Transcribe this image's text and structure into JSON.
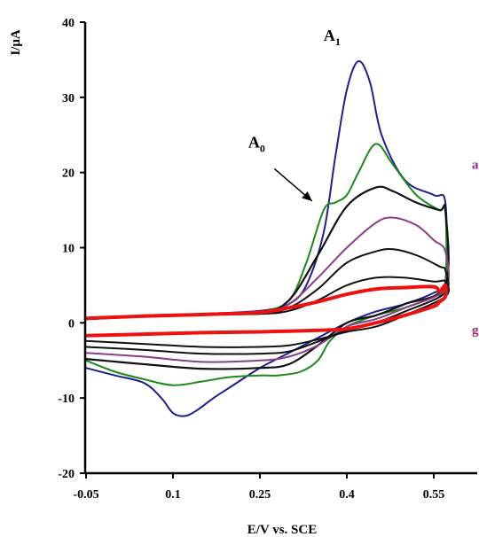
{
  "chart_data": {
    "type": "line",
    "title": "",
    "xlabel": "E/V vs. SCE",
    "ylabel": "I/μA",
    "xlim": [
      -0.05,
      0.62
    ],
    "ylim": [
      -20,
      40
    ],
    "xticks": [
      -0.05,
      0.1,
      0.25,
      0.4,
      0.55
    ],
    "xtick_labels": [
      "-0.05",
      "0.1",
      "0.25",
      "0.4",
      "0.55"
    ],
    "yticks": [
      -20,
      -10,
      0,
      10,
      20,
      30,
      40
    ],
    "ytick_labels": [
      "-20",
      "-10",
      "0",
      "10",
      "20",
      "30",
      "40"
    ],
    "grid": false,
    "legend": "none",
    "annotations": [
      {
        "main": "A",
        "sub": "1",
        "x": 0.36,
        "y": 37.5
      },
      {
        "main": "A",
        "sub": "0",
        "x": 0.23,
        "y": 23.3
      }
    ],
    "annotation_arrow": {
      "from": [
        0.275,
        20.5
      ],
      "to": [
        0.34,
        16.2
      ]
    },
    "edge_labels": [
      {
        "text": "a",
        "color": "#8b2a7e",
        "x": 0.66,
        "y": 20.5
      },
      {
        "text": "g",
        "color": "#8b2a7e",
        "x": 0.66,
        "y": -1.5
      }
    ],
    "series": [
      {
        "color": "#1f1f8f",
        "width": 2,
        "x": [
          -0.05,
          0.05,
          0.15,
          0.25,
          0.3,
          0.33,
          0.36,
          0.38,
          0.4,
          0.42,
          0.44,
          0.46,
          0.5,
          0.55,
          0.57,
          0.57,
          0.55,
          0.5,
          0.45,
          0.4,
          0.35,
          0.3,
          0.25,
          0.2,
          0.17,
          0.14,
          0.12,
          0.1,
          0.08,
          0.05,
          0.0,
          -0.05
        ],
        "y": [
          0.5,
          1.0,
          1.2,
          1.6,
          2.5,
          5.0,
          12.0,
          22.0,
          31.0,
          34.8,
          32.0,
          25.0,
          19.0,
          17.0,
          16.0,
          5.5,
          4.0,
          2.5,
          1.5,
          0.0,
          -2.0,
          -4.0,
          -6.0,
          -8.5,
          -10.0,
          -11.7,
          -12.4,
          -12.0,
          -10.0,
          -8.0,
          -7.0,
          -6.0
        ]
      },
      {
        "color": "#1a8a1a",
        "width": 2,
        "x": [
          -0.05,
          0.05,
          0.15,
          0.25,
          0.3,
          0.33,
          0.36,
          0.38,
          0.4,
          0.42,
          0.45,
          0.48,
          0.52,
          0.56,
          0.57,
          0.57,
          0.55,
          0.5,
          0.45,
          0.4,
          0.37,
          0.35,
          0.32,
          0.28,
          0.25,
          0.2,
          0.15,
          0.1,
          0.05,
          0.0,
          -0.05
        ],
        "y": [
          0.5,
          0.9,
          1.1,
          1.5,
          3.0,
          8.0,
          15.0,
          16.0,
          17.0,
          20.0,
          23.8,
          21.0,
          17.0,
          15.0,
          15.0,
          5.0,
          3.5,
          2.0,
          1.0,
          -0.5,
          -2.5,
          -5.0,
          -6.5,
          -7.0,
          -7.0,
          -7.2,
          -7.8,
          -8.3,
          -7.5,
          -6.5,
          -5.0
        ]
      },
      {
        "color": "#111111",
        "width": 2.2,
        "x": [
          -0.05,
          0.1,
          0.25,
          0.3,
          0.35,
          0.4,
          0.45,
          0.48,
          0.52,
          0.56,
          0.57,
          0.57,
          0.5,
          0.45,
          0.4,
          0.35,
          0.3,
          0.25,
          0.15,
          0.05,
          -0.05
        ],
        "y": [
          0.5,
          1.0,
          1.5,
          3.0,
          9.0,
          15.5,
          18.0,
          17.5,
          16.0,
          15.0,
          15.0,
          5.0,
          2.5,
          1.0,
          0.0,
          -3.0,
          -5.5,
          -6.0,
          -6.1,
          -5.5,
          -4.8
        ]
      },
      {
        "color": "#8b3d85",
        "width": 2,
        "x": [
          -0.05,
          0.1,
          0.25,
          0.3,
          0.35,
          0.4,
          0.45,
          0.48,
          0.52,
          0.55,
          0.57,
          0.57,
          0.5,
          0.45,
          0.4,
          0.35,
          0.3,
          0.25,
          0.15,
          0.05,
          -0.05
        ],
        "y": [
          0.5,
          1.0,
          1.4,
          2.5,
          6.0,
          10.0,
          13.3,
          14.0,
          13.0,
          11.0,
          9.5,
          4.5,
          2.0,
          0.5,
          -0.5,
          -3.0,
          -4.5,
          -5.0,
          -5.2,
          -4.5,
          -4.0
        ]
      },
      {
        "color": "#111111",
        "width": 2,
        "x": [
          -0.05,
          0.1,
          0.25,
          0.3,
          0.35,
          0.4,
          0.45,
          0.48,
          0.52,
          0.56,
          0.57,
          0.57,
          0.5,
          0.45,
          0.4,
          0.35,
          0.3,
          0.25,
          0.15,
          0.05,
          -0.05
        ],
        "y": [
          0.5,
          1.0,
          1.3,
          2.0,
          4.5,
          8.0,
          9.5,
          9.8,
          9.0,
          7.5,
          7.0,
          4.0,
          1.5,
          0.0,
          -1.0,
          -2.5,
          -3.8,
          -4.1,
          -4.1,
          -3.6,
          -3.2
        ]
      },
      {
        "color": "#111111",
        "width": 2,
        "x": [
          -0.05,
          0.1,
          0.25,
          0.3,
          0.35,
          0.4,
          0.45,
          0.5,
          0.55,
          0.57,
          0.57,
          0.5,
          0.45,
          0.4,
          0.35,
          0.3,
          0.25,
          0.15,
          0.05,
          -0.05
        ],
        "y": [
          0.5,
          1.0,
          1.2,
          1.6,
          3.0,
          5.0,
          6.0,
          6.0,
          5.5,
          5.5,
          3.5,
          1.0,
          -0.5,
          -1.2,
          -2.2,
          -3.0,
          -3.2,
          -3.2,
          -2.8,
          -2.4
        ]
      },
      {
        "color": "#ee1111",
        "width": 4,
        "x": [
          -0.05,
          0.05,
          0.15,
          0.25,
          0.3,
          0.35,
          0.4,
          0.45,
          0.5,
          0.55,
          0.56,
          0.57,
          0.57,
          0.56,
          0.55,
          0.5,
          0.45,
          0.4,
          0.35,
          0.3,
          0.25,
          0.15,
          0.05,
          -0.05
        ],
        "y": [
          0.6,
          0.9,
          1.1,
          1.4,
          2.0,
          2.8,
          3.8,
          4.5,
          4.7,
          4.8,
          4.2,
          5.0,
          3.5,
          2.8,
          2.2,
          1.0,
          0.0,
          -0.8,
          -1.0,
          -1.1,
          -1.2,
          -1.3,
          -1.5,
          -1.7
        ]
      }
    ]
  }
}
